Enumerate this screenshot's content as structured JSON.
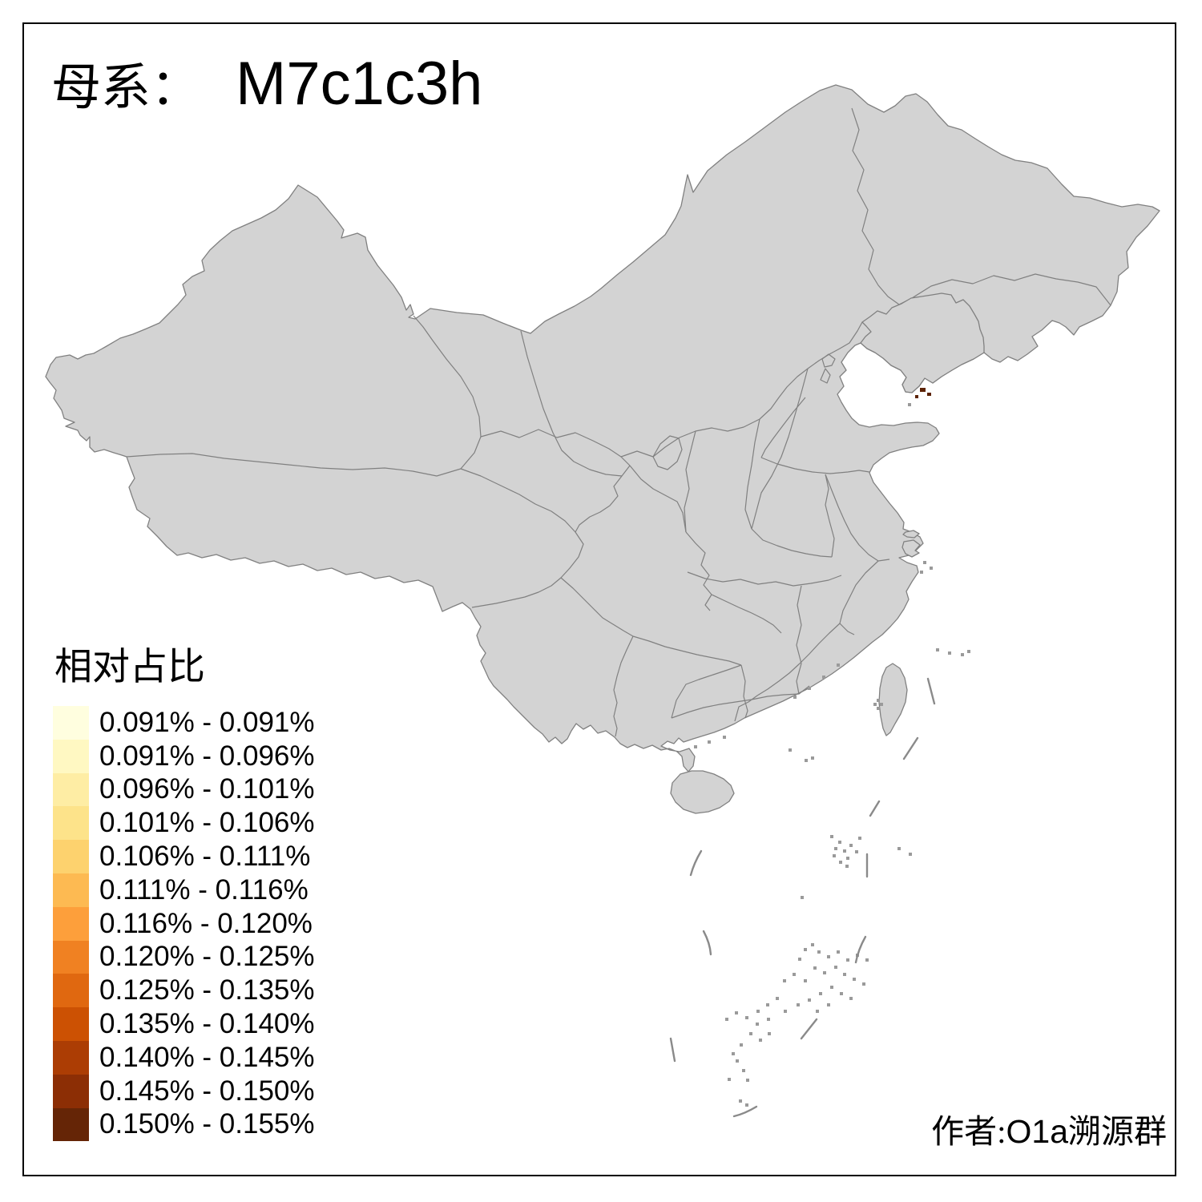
{
  "title": {
    "prefix": "母系：",
    "haplogroup": "M7c1c3h"
  },
  "legend": {
    "title": "相对占比",
    "classes": [
      {
        "color": "#FFFEDF",
        "label": "0.091% - 0.091%"
      },
      {
        "color": "#FFF8C2",
        "label": "0.091% - 0.096%"
      },
      {
        "color": "#FEEDA4",
        "label": "0.096% - 0.101%"
      },
      {
        "color": "#FDE38A",
        "label": "0.101% - 0.106%"
      },
      {
        "color": "#FDD26E",
        "label": "0.106% - 0.111%"
      },
      {
        "color": "#FDBA52",
        "label": "0.111% - 0.116%"
      },
      {
        "color": "#FD9F3B",
        "label": "0.116% - 0.120%"
      },
      {
        "color": "#F08122",
        "label": "0.120% - 0.125%"
      },
      {
        "color": "#E06810",
        "label": "0.125% - 0.135%"
      },
      {
        "color": "#CC5103",
        "label": "0.135% - 0.140%"
      },
      {
        "color": "#AC3D04",
        "label": "0.140% - 0.145%"
      },
      {
        "color": "#8C2E05",
        "label": "0.145% - 0.150%"
      },
      {
        "color": "#652506",
        "label": "0.150% - 0.155%"
      }
    ]
  },
  "attribution": {
    "prefix": "作者:",
    "group_latin": "O1a",
    "suffix": "溯源群"
  },
  "map": {
    "base_fill": "#D3D3D3",
    "border_color": "#808080",
    "background": "#FFFFFF",
    "regions": [
      {
        "name": "Liaoning",
        "value_range": "0.150% - 0.155%",
        "color": "#5C2306"
      },
      {
        "name": "Shanghai",
        "value_range": "0.091% - 0.091%",
        "color": "#FFFEDF"
      }
    ]
  }
}
